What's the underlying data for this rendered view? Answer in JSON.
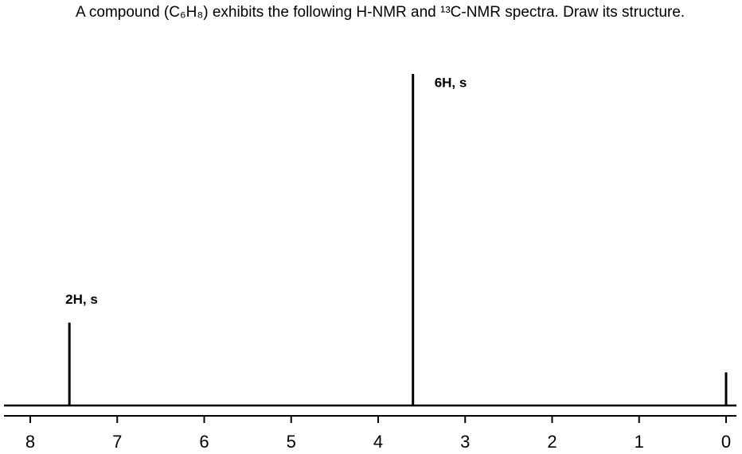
{
  "chart_data": {
    "type": "spectrum",
    "title": "A compound (C₆H₈) exhibits the following H-NMR and ¹³C-NMR spectra. Draw its structure.",
    "x": [
      7.55,
      3.6,
      0
    ],
    "values": [
      25,
      100,
      10
    ],
    "peak_labels": [
      "2H, s",
      "6H, s",
      null
    ],
    "color": "#000000",
    "xlim": [
      8,
      0
    ],
    "xticks": [
      8,
      7,
      6,
      5,
      4,
      3,
      2,
      1,
      0
    ],
    "ylim": [
      0,
      100
    ]
  }
}
